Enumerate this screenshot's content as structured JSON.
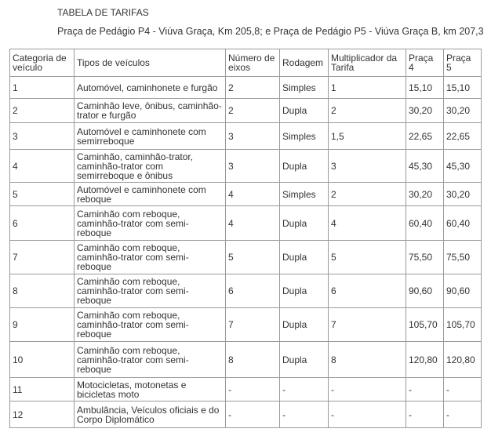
{
  "title": "TABELA DE TARIFAS",
  "subtitle": "Praça de Pedágio P4 - Viúva Graça, Km 205,8; e Praça de Pedágio P5 - Viúva Graça B, km 207,3",
  "headers": [
    "Categoria de veículo",
    "Tipos de veículos",
    "Número de eixos",
    "Rodagem",
    "Multiplicador da Tarifa",
    "Praça 4",
    "Praça 5"
  ],
  "rows": [
    [
      "1",
      "Automóvel, caminhonete e furgão",
      "2",
      "Simples",
      "1",
      "15,10",
      "15,10"
    ],
    [
      "2",
      "Caminhão leve, ônibus, caminhão-trator e furgão",
      "2",
      "Dupla",
      "2",
      "30,20",
      "30,20"
    ],
    [
      "3",
      "Automóvel e caminhonete com semirreboque",
      "3",
      "Simples",
      "1,5",
      "22,65",
      "22,65"
    ],
    [
      "4",
      "Caminhão, caminhão-trator, caminhão-trator com semirreboque e ônibus",
      "3",
      "Dupla",
      "3",
      "45,30",
      "45,30"
    ],
    [
      "5",
      "Automóvel e caminhonete com reboque",
      "4",
      "Simples",
      "2",
      "30,20",
      "30,20"
    ],
    [
      "6",
      "Caminhão com reboque, caminhão-trator com semi-reboque",
      "4",
      "Dupla",
      "4",
      "60,40",
      "60,40"
    ],
    [
      "7",
      "Caminhão com reboque, caminhão-trator com semi-reboque",
      "5",
      "Dupla",
      "5",
      "75,50",
      "75,50"
    ],
    [
      "8",
      "Caminhão com reboque, caminhão-trator com semi-reboque",
      "6",
      "Dupla",
      "6",
      "90,60",
      "90,60"
    ],
    [
      "9",
      "Caminhão com reboque, caminhão-trator com semi-reboque",
      "7",
      "Dupla",
      "7",
      "105,70",
      "105,70"
    ],
    [
      "10",
      "Caminhão com reboque, caminhão-trator com semi-reboque",
      "8",
      "Dupla",
      "8",
      "120,80",
      "120,80"
    ],
    [
      "11",
      "Motocicletas, motonetas e bicicletas moto",
      "-",
      "-",
      "-",
      "-",
      "-"
    ],
    [
      "12",
      "Ambulância, Veículos oficiais e do Corpo Diplomático",
      "-",
      "-",
      "-",
      "-",
      "-"
    ]
  ]
}
